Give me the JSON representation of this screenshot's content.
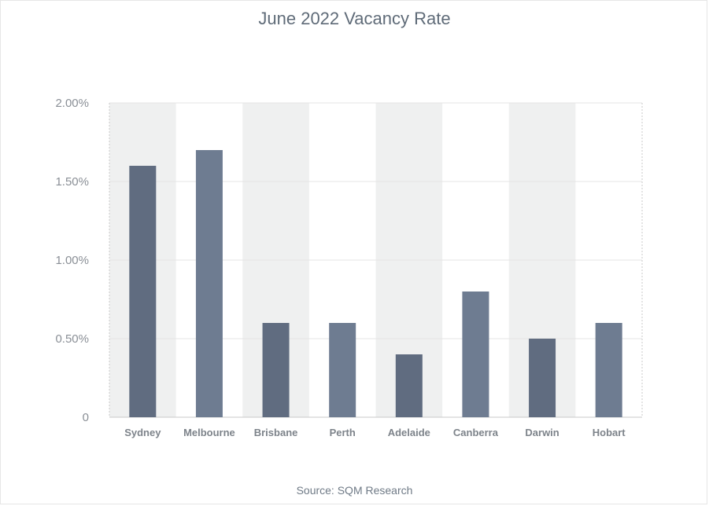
{
  "chart_data": {
    "type": "bar",
    "title": "June 2022 Vacancy Rate",
    "source": "Source: SQM Research",
    "categories": [
      "Sydney",
      "Melbourne",
      "Brisbane",
      "Perth",
      "Adelaide",
      "Canberra",
      "Darwin",
      "Hobart"
    ],
    "values": [
      1.6,
      1.7,
      0.6,
      0.6,
      0.4,
      0.8,
      0.5,
      0.6
    ],
    "ylim": [
      0,
      2.0
    ],
    "yticks": [
      0,
      0.5,
      1.0,
      1.5,
      2.0
    ],
    "ytick_labels": [
      "0",
      "0.50%",
      "1.00%",
      "1.50%",
      "2.00%"
    ],
    "xlabel": "",
    "ylabel": "",
    "grid": true,
    "colors": {
      "bar_dark": "#606c80",
      "bar_light": "#6e7c91",
      "band": "#eff0f0",
      "grid": "#e4e4e4",
      "axis": "#c9c9c9"
    }
  }
}
